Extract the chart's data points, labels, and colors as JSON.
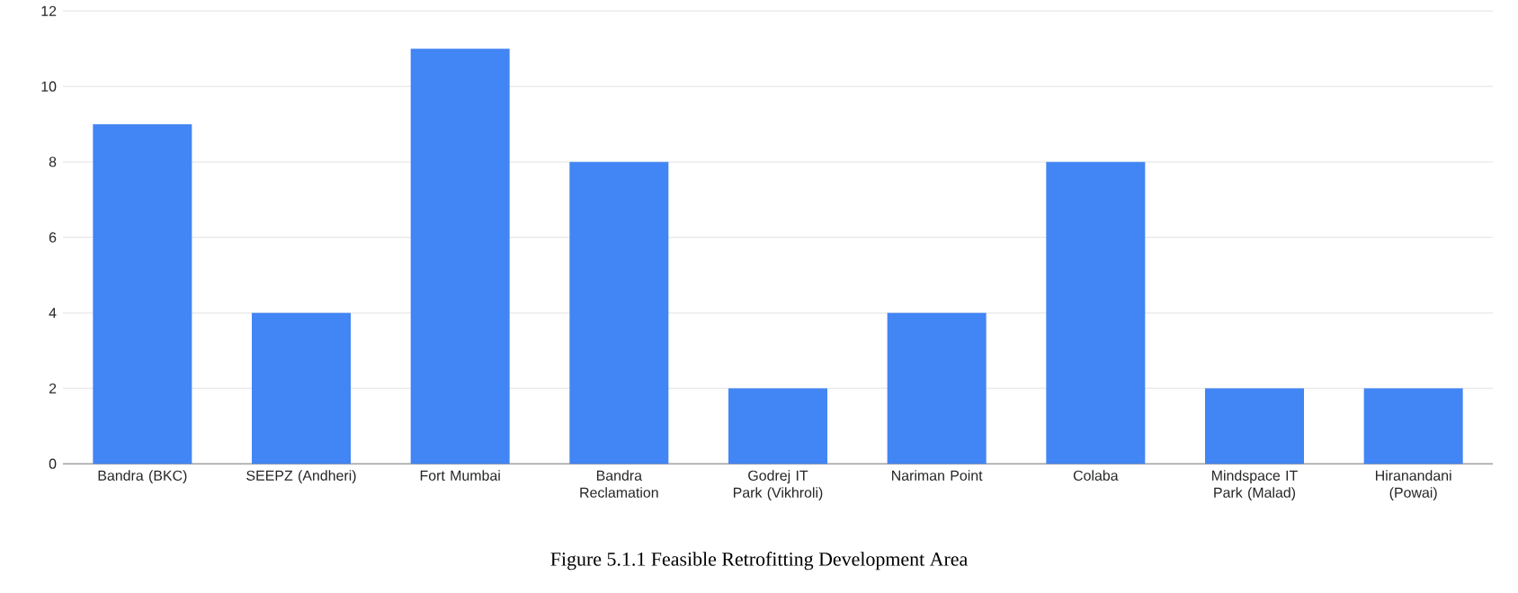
{
  "chart_data": {
    "type": "bar",
    "categories": [
      "Bandra (BKC)",
      "SEEPZ (Andheri)",
      "Fort Mumbai",
      "Bandra Reclamation",
      "Godrej IT Park (Vikhroli)",
      "Nariman Point",
      "Colaba",
      "Mindspace IT Park (Malad)",
      "Hiranandani (Powai)"
    ],
    "values": [
      9,
      4,
      11,
      8,
      2,
      4,
      8,
      2,
      2
    ],
    "color": "#4285f4",
    "ylim": [
      0,
      12
    ],
    "yticks": [
      0,
      2,
      4,
      6,
      8,
      10,
      12
    ],
    "grid": "y",
    "annotations": [
      "Figure 5.1.1 Feasible Retrofitting Development Area"
    ]
  }
}
